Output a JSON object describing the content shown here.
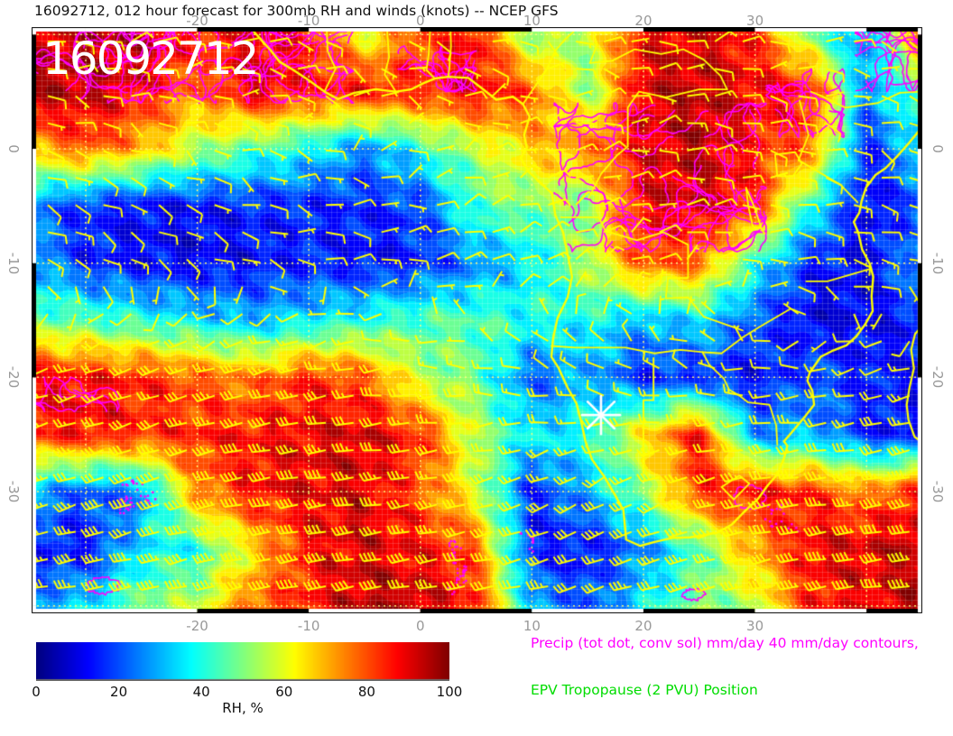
{
  "title": "16092712, 012 hour forecast for 300mb RH and winds (knots) -- NCEP GFS",
  "map_overlay": {
    "run_label": "16092712"
  },
  "axes": {
    "lon_ticks": [
      {
        "label": "-20",
        "value": -20
      },
      {
        "label": "-10",
        "value": -10
      },
      {
        "label": "0",
        "value": 0
      },
      {
        "label": "10",
        "value": 10
      },
      {
        "label": "20",
        "value": 20
      },
      {
        "label": "30",
        "value": 30
      }
    ],
    "lat_ticks": [
      {
        "label": "0",
        "value": 0
      },
      {
        "label": "-10",
        "value": -10
      },
      {
        "label": "-20",
        "value": -20
      },
      {
        "label": "-30",
        "value": -30
      }
    ]
  },
  "colorbar": {
    "label": "RH, %",
    "ticks": [
      "0",
      "20",
      "40",
      "60",
      "80",
      "100"
    ],
    "tick_values": [
      0,
      20,
      40,
      60,
      80,
      100
    ],
    "min": 0,
    "max": 100,
    "colormap": "jet"
  },
  "legend": {
    "precip_label": "Precip (tot dot, conv sol) mm/day 40 mm/day contours,",
    "precip_color": "#ff00ff",
    "epv_label": "EPV Tropopause (2 PVU) Position",
    "epv_color": "#00dd00"
  },
  "colors": {
    "wind_barb": "#ffff00",
    "coastline": "#ffff00",
    "precip_contour": "#ff00ff",
    "graticule": "rgba(255,255,120,0.95)",
    "mesh": "rgba(255,255,255,0.16)",
    "site_marker": "#ffffff",
    "tick_label": "#999999"
  },
  "site_marker": {
    "lon": 16.2,
    "lat": -23.3,
    "shape": "8-ray-star"
  },
  "chart_data": {
    "type": "heatmap",
    "title": "16092712, 012 hour forecast for 300mb RH and winds (knots) -- NCEP GFS",
    "field": "300mb relative humidity (%)",
    "overlay": "wind barbs (knots), precip contours, coastlines",
    "model_run": "16092712",
    "forecast_hour": 12,
    "extent": {
      "lon_min": -34.85,
      "lon_max": 45.0,
      "lat_min": -40.65,
      "lat_max": 10.65
    },
    "grid_lons": [
      -35,
      -30,
      -25,
      -20,
      -15,
      -10,
      -5,
      0,
      5,
      10,
      15,
      20,
      25,
      30,
      35,
      40,
      45
    ],
    "grid_lats": [
      10,
      5,
      0,
      -5,
      -10,
      -15,
      -20,
      -25,
      -30,
      -35,
      -40
    ],
    "rh_pct": [
      [
        90,
        95,
        95,
        85,
        90,
        85,
        60,
        80,
        88,
        50,
        55,
        90,
        92,
        85,
        50,
        25,
        80
      ],
      [
        95,
        95,
        88,
        75,
        92,
        85,
        88,
        85,
        90,
        80,
        50,
        92,
        95,
        90,
        85,
        25,
        50
      ],
      [
        70,
        80,
        70,
        55,
        45,
        38,
        25,
        40,
        55,
        68,
        75,
        90,
        95,
        85,
        78,
        15,
        35
      ],
      [
        25,
        15,
        12,
        12,
        15,
        15,
        15,
        18,
        45,
        50,
        50,
        90,
        92,
        85,
        40,
        10,
        20
      ],
      [
        30,
        15,
        12,
        10,
        12,
        15,
        12,
        15,
        25,
        35,
        55,
        80,
        78,
        40,
        15,
        10,
        30
      ],
      [
        50,
        45,
        40,
        35,
        30,
        35,
        40,
        45,
        45,
        40,
        38,
        30,
        35,
        20,
        10,
        10,
        15
      ],
      [
        90,
        88,
        85,
        80,
        75,
        85,
        80,
        55,
        48,
        20,
        30,
        15,
        15,
        12,
        20,
        15,
        12
      ],
      [
        85,
        88,
        85,
        85,
        88,
        90,
        92,
        85,
        55,
        35,
        40,
        65,
        88,
        25,
        30,
        15,
        12
      ],
      [
        30,
        20,
        25,
        75,
        88,
        90,
        92,
        80,
        58,
        15,
        30,
        50,
        85,
        88,
        85,
        75,
        88
      ],
      [
        15,
        12,
        35,
        40,
        65,
        88,
        92,
        88,
        80,
        15,
        12,
        25,
        45,
        72,
        90,
        92,
        95
      ],
      [
        25,
        35,
        50,
        55,
        80,
        85,
        95,
        95,
        85,
        30,
        20,
        35,
        50,
        55,
        85,
        90,
        95
      ]
    ],
    "wind": {
      "lons": [
        -35,
        -25,
        -15,
        -5,
        5,
        15,
        25,
        35,
        45
      ],
      "lats": [
        10,
        0,
        -10,
        -20,
        -30,
        -40
      ],
      "u_kt": [
        [
          -8,
          -10,
          -9,
          -6,
          -4,
          -7,
          -9,
          -8,
          -6
        ],
        [
          -9,
          -7,
          -6,
          -4,
          -6,
          -8,
          -10,
          -9,
          -8
        ],
        [
          -11,
          -9,
          -8,
          -10,
          -12,
          -9,
          -7,
          -11,
          -13
        ],
        [
          22,
          26,
          30,
          24,
          16,
          12,
          10,
          14,
          18
        ],
        [
          30,
          36,
          42,
          36,
          28,
          24,
          30,
          36,
          40
        ],
        [
          36,
          42,
          46,
          40,
          34,
          30,
          36,
          42,
          46
        ]
      ],
      "v_kt": [
        [
          1,
          -2,
          0,
          2,
          3,
          1,
          -2,
          0,
          2
        ],
        [
          3,
          4,
          2,
          -1,
          -3,
          -2,
          0,
          2,
          3
        ],
        [
          5,
          6,
          3,
          0,
          -4,
          -6,
          -3,
          1,
          4
        ],
        [
          6,
          9,
          8,
          3,
          -2,
          -6,
          -4,
          2,
          6
        ],
        [
          10,
          12,
          7,
          4,
          8,
          14,
          10,
          4,
          8
        ],
        [
          4,
          8,
          10,
          8,
          4,
          8,
          10,
          8,
          4
        ]
      ]
    },
    "colorbar_ticks": [
      0,
      20,
      40,
      60,
      80,
      100
    ]
  },
  "geo": {
    "coastline_africa": [
      [
        -15.3,
        10.65
      ],
      [
        -14.6,
        9.9
      ],
      [
        -13.4,
        8.6
      ],
      [
        -12.6,
        7.6
      ],
      [
        -11.4,
        6.9
      ],
      [
        -10.3,
        6.2
      ],
      [
        -8.6,
        5.0
      ],
      [
        -7.4,
        4.35
      ],
      [
        -5.9,
        4.9
      ],
      [
        -4.0,
        5.2
      ],
      [
        -2.2,
        5.0
      ],
      [
        -0.8,
        5.2
      ],
      [
        0.3,
        5.75
      ],
      [
        1.3,
        6.15
      ],
      [
        2.5,
        6.3
      ],
      [
        4.3,
        6.2
      ],
      [
        5.5,
        5.3
      ],
      [
        6.8,
        4.3
      ],
      [
        8.3,
        4.55
      ],
      [
        9.2,
        3.9
      ],
      [
        9.8,
        2.8
      ],
      [
        9.3,
        1.2
      ],
      [
        9.55,
        0.1
      ],
      [
        9.0,
        -0.8
      ],
      [
        9.7,
        -2.0
      ],
      [
        11.8,
        -3.9
      ],
      [
        12.1,
        -5.8
      ],
      [
        12.8,
        -7.3
      ],
      [
        13.2,
        -9.2
      ],
      [
        13.6,
        -11.2
      ],
      [
        13.2,
        -13.0
      ],
      [
        12.3,
        -14.8
      ],
      [
        11.9,
        -16.6
      ],
      [
        11.75,
        -18.2
      ],
      [
        12.4,
        -19.2
      ],
      [
        13.2,
        -20.9
      ],
      [
        14.0,
        -22.3
      ],
      [
        14.45,
        -24.0
      ],
      [
        14.8,
        -25.6
      ],
      [
        15.4,
        -27.2
      ],
      [
        16.5,
        -28.7
      ],
      [
        17.4,
        -30.2
      ],
      [
        18.2,
        -31.6
      ],
      [
        18.35,
        -33.1
      ],
      [
        18.45,
        -34.2
      ],
      [
        19.7,
        -34.75
      ],
      [
        21.0,
        -34.4
      ],
      [
        22.6,
        -34.05
      ],
      [
        24.2,
        -34.0
      ],
      [
        25.7,
        -33.75
      ],
      [
        26.6,
        -33.6
      ],
      [
        27.9,
        -32.9
      ],
      [
        29.1,
        -31.7
      ],
      [
        30.3,
        -30.6
      ],
      [
        31.1,
        -29.5
      ],
      [
        32.0,
        -28.5
      ],
      [
        32.6,
        -27.1
      ],
      [
        32.9,
        -26.0
      ],
      [
        32.6,
        -25.6
      ],
      [
        33.3,
        -24.8
      ],
      [
        34.5,
        -23.4
      ],
      [
        35.3,
        -22.4
      ],
      [
        35.15,
        -21.2
      ],
      [
        34.7,
        -20.3
      ],
      [
        34.9,
        -19.6
      ],
      [
        35.9,
        -18.2
      ],
      [
        36.9,
        -17.7
      ],
      [
        38.2,
        -17.2
      ],
      [
        39.1,
        -16.4
      ],
      [
        39.85,
        -15.4
      ],
      [
        40.55,
        -14.2
      ],
      [
        40.45,
        -12.9
      ],
      [
        40.6,
        -11.2
      ],
      [
        40.3,
        -10.1
      ],
      [
        39.6,
        -8.8
      ],
      [
        39.25,
        -7.3
      ],
      [
        38.85,
        -6.4
      ],
      [
        39.35,
        -5.6
      ],
      [
        39.55,
        -4.6
      ],
      [
        39.95,
        -3.4
      ],
      [
        40.8,
        -2.3
      ],
      [
        41.7,
        -1.7
      ],
      [
        42.8,
        -0.6
      ],
      [
        43.8,
        0.5
      ],
      [
        44.9,
        1.8
      ],
      [
        45.0,
        2.2
      ]
    ],
    "coastline_madagascar": [
      [
        45.0,
        -15.5
      ],
      [
        44.35,
        -16.2
      ],
      [
        44.0,
        -17.6
      ],
      [
        44.25,
        -19.2
      ],
      [
        43.85,
        -20.9
      ],
      [
        43.6,
        -22.4
      ],
      [
        43.75,
        -23.7
      ],
      [
        44.3,
        -25.2
      ],
      [
        45.0,
        -25.7
      ]
    ],
    "borders": [
      [
        [
          2.7,
          10.65
        ],
        [
          2.75,
          9.0
        ],
        [
          2.6,
          7.0
        ],
        [
          2.5,
          6.3
        ]
      ],
      [
        [
          0.9,
          10.65
        ],
        [
          0.75,
          8.3
        ],
        [
          0.55,
          6.9
        ],
        [
          1.3,
          6.15
        ]
      ],
      [
        [
          -3.0,
          10.65
        ],
        [
          -2.8,
          8.0
        ],
        [
          -3.2,
          6.5
        ],
        [
          -2.2,
          5.0
        ]
      ],
      [
        [
          -8.4,
          10.65
        ],
        [
          -8.3,
          8.5
        ],
        [
          -7.6,
          7.0
        ],
        [
          -8.6,
          5.0
        ]
      ],
      [
        [
          14.2,
          10.65
        ],
        [
          13.0,
          9.6
        ],
        [
          12.1,
          8.6
        ],
        [
          11.3,
          6.9
        ],
        [
          10.1,
          5.2
        ],
        [
          9.2,
          3.9
        ]
      ],
      [
        [
          15.2,
          7.5
        ],
        [
          17.2,
          7.7
        ],
        [
          19.2,
          8.7
        ],
        [
          21.6,
          8.3
        ],
        [
          23.6,
          8.7
        ],
        [
          25.4,
          7.8
        ],
        [
          26.9,
          6.4
        ],
        [
          27.5,
          5.2
        ]
      ],
      [
        [
          15.1,
          -4.3
        ],
        [
          16.2,
          -2.2
        ],
        [
          17.6,
          -0.6
        ],
        [
          18.6,
          0.2
        ],
        [
          18.6,
          3.6
        ],
        [
          19.6,
          5.0
        ],
        [
          22.0,
          4.5
        ],
        [
          25.0,
          5.2
        ],
        [
          27.5,
          5.2
        ]
      ],
      [
        [
          12.6,
          -6.0
        ],
        [
          16.0,
          -6.0
        ],
        [
          16.6,
          -7.2
        ],
        [
          19.4,
          -8.0
        ],
        [
          21.8,
          -7.3
        ],
        [
          24.0,
          -8.4
        ],
        [
          24.0,
          -11.3
        ],
        [
          22.2,
          -11.3
        ],
        [
          22.0,
          -13.1
        ],
        [
          24.0,
          -13.0
        ],
        [
          25.4,
          -14.7
        ],
        [
          28.9,
          -15.9
        ]
      ],
      [
        [
          11.75,
          -17.25
        ],
        [
          13.9,
          -17.4
        ],
        [
          18.4,
          -17.4
        ],
        [
          21.0,
          -17.9
        ],
        [
          23.3,
          -17.6
        ],
        [
          25.3,
          -17.8
        ]
      ],
      [
        [
          20.9,
          -18.3
        ],
        [
          20.9,
          -22.0
        ],
        [
          20.0,
          -22.0
        ],
        [
          20.0,
          -28.4
        ]
      ],
      [
        [
          25.3,
          -17.8
        ],
        [
          25.9,
          -18.9
        ],
        [
          27.2,
          -20.1
        ],
        [
          27.7,
          -21.1
        ],
        [
          28.6,
          -21.6
        ],
        [
          29.4,
          -22.2
        ],
        [
          31.3,
          -22.4
        ],
        [
          31.9,
          -24.2
        ],
        [
          32.0,
          -25.9
        ]
      ],
      [
        [
          27.0,
          -29.6
        ],
        [
          28.6,
          -28.6
        ],
        [
          29.5,
          -29.3
        ],
        [
          28.1,
          -30.7
        ],
        [
          27.0,
          -29.6
        ]
      ],
      [
        [
          25.3,
          -17.8
        ],
        [
          27.0,
          -17.9
        ],
        [
          28.9,
          -16.5
        ],
        [
          30.4,
          -15.6
        ],
        [
          33.2,
          -14.0
        ],
        [
          34.5,
          -14.5
        ]
      ],
      [
        [
          33.9,
          -1.0
        ],
        [
          37.6,
          -3.1
        ],
        [
          39.2,
          -4.7
        ]
      ],
      [
        [
          40.4,
          -10.5
        ],
        [
          36.5,
          -11.6
        ],
        [
          34.6,
          -11.6
        ]
      ],
      [
        [
          35.0,
          5.0
        ],
        [
          36.0,
          4.6
        ],
        [
          38.1,
          3.6
        ],
        [
          41.0,
          4.0
        ],
        [
          43.0,
          4.9
        ],
        [
          45.0,
          5.0
        ]
      ],
      [
        [
          15.5,
          10.65
        ],
        [
          15.8,
          9.0
        ],
        [
          15.2,
          7.5
        ]
      ],
      [
        [
          34.0,
          4.2
        ],
        [
          34.8,
          1.2
        ],
        [
          33.9,
          -1.0
        ]
      ]
    ],
    "lakes": [
      [
        [
          31.8,
          -0.5
        ],
        [
          33.6,
          -0.3
        ],
        [
          34.2,
          -1.3
        ],
        [
          33.4,
          -2.4
        ],
        [
          32.0,
          -2.4
        ],
        [
          31.8,
          -0.5
        ]
      ],
      [
        [
          29.2,
          -3.4
        ],
        [
          29.9,
          -5.0
        ],
        [
          30.6,
          -7.0
        ],
        [
          29.8,
          -6.8
        ],
        [
          29.4,
          -5.0
        ],
        [
          29.2,
          -3.4
        ]
      ]
    ]
  },
  "precip_features": [
    {
      "type": "squiggles",
      "lon": [
        -35,
        -6
      ],
      "lat": [
        4,
        10.6
      ],
      "count": 30
    },
    {
      "type": "squiggles",
      "lon": [
        -2,
        5
      ],
      "lat": [
        5,
        9
      ],
      "count": 6
    },
    {
      "type": "squiggles",
      "lon": [
        12,
        31
      ],
      "lat": [
        -9,
        4
      ],
      "count": 30
    },
    {
      "type": "squiggles",
      "lon": [
        31,
        38
      ],
      "lat": [
        1,
        7
      ],
      "count": 8
    },
    {
      "type": "squiggles",
      "lon": [
        39,
        45
      ],
      "lat": [
        5,
        10.6
      ],
      "count": 8
    },
    {
      "type": "squiggles",
      "lon": [
        -35,
        -27
      ],
      "lat": [
        -23,
        -20
      ],
      "count": 4
    },
    {
      "type": "dots",
      "lon": [
        -27,
        -21
      ],
      "lat": [
        -34,
        -28
      ],
      "count": 40
    },
    {
      "type": "dots",
      "lon": [
        0,
        4
      ],
      "lat": [
        -39,
        -29
      ],
      "count": 45
    },
    {
      "type": "dots",
      "lon": [
        7,
        10
      ],
      "lat": [
        -37,
        -33
      ],
      "count": 12
    },
    {
      "type": "dots",
      "lon": [
        30,
        34
      ],
      "lat": [
        -35,
        -30
      ],
      "count": 20
    },
    {
      "type": "loop",
      "lon": [
        -30,
        -27
      ],
      "lat": [
        -39,
        -37.5
      ],
      "count": 1
    },
    {
      "type": "loop",
      "lon": [
        28,
        31
      ],
      "lat": [
        -31.5,
        -29.5
      ],
      "count": 1
    },
    {
      "type": "loop",
      "lon": [
        23.5,
        25.5
      ],
      "lat": [
        -39.5,
        -38.5
      ],
      "count": 1
    }
  ]
}
